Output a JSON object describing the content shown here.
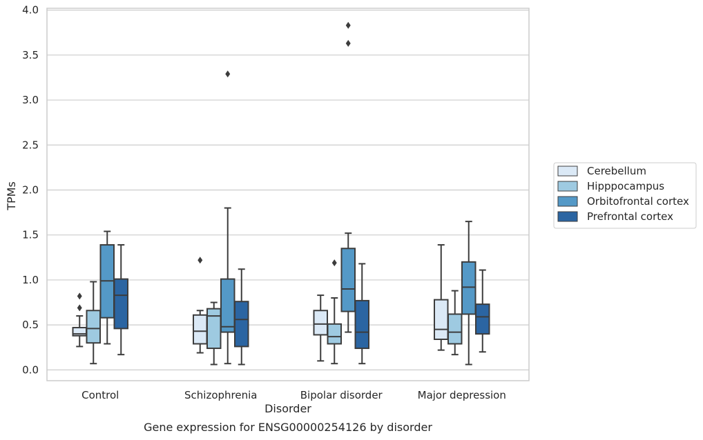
{
  "chart_data": {
    "type": "box",
    "xlabel": "Disorder",
    "ylabel": "TPMs",
    "caption": "Gene expression for ENSG00000254126 by disorder",
    "ylim": [
      -0.12,
      4.02
    ],
    "yticks": [
      "0.0",
      "0.5",
      "1.0",
      "1.5",
      "2.0",
      "2.5",
      "3.0",
      "3.5",
      "4.0"
    ],
    "ytick_values": [
      0.0,
      0.5,
      1.0,
      1.5,
      2.0,
      2.5,
      3.0,
      3.5,
      4.0
    ],
    "grid": "horizontal",
    "legend_position": "right",
    "categories": [
      "Control",
      "Schizophrenia",
      "Bipolar disorder",
      "Major depression"
    ],
    "series": [
      {
        "name": "Cerebellum",
        "color": "#dbe9f6",
        "boxes": [
          {
            "min": 0.26,
            "q1": 0.38,
            "median": 0.4,
            "q3": 0.47,
            "max": 0.6,
            "outliers": [
              0.69,
              0.82
            ]
          },
          {
            "min": 0.19,
            "q1": 0.29,
            "median": 0.43,
            "q3": 0.61,
            "max": 0.66,
            "outliers": [
              1.22
            ]
          },
          {
            "min": 0.1,
            "q1": 0.39,
            "median": 0.51,
            "q3": 0.66,
            "max": 0.83,
            "outliers": []
          },
          {
            "min": 0.22,
            "q1": 0.34,
            "median": 0.45,
            "q3": 0.78,
            "max": 1.39,
            "outliers": []
          }
        ]
      },
      {
        "name": "Hipppocampus",
        "color": "#9ecae1",
        "boxes": [
          {
            "min": 0.07,
            "q1": 0.3,
            "median": 0.46,
            "q3": 0.66,
            "max": 0.98,
            "outliers": []
          },
          {
            "min": 0.06,
            "q1": 0.24,
            "median": 0.6,
            "q3": 0.68,
            "max": 0.75,
            "outliers": []
          },
          {
            "min": 0.07,
            "q1": 0.29,
            "median": 0.37,
            "q3": 0.51,
            "max": 0.8,
            "outliers": [
              1.19
            ]
          },
          {
            "min": 0.17,
            "q1": 0.29,
            "median": 0.42,
            "q3": 0.62,
            "max": 0.88,
            "outliers": []
          }
        ]
      },
      {
        "name": "Orbitofrontal cortex",
        "color": "#5499c7",
        "boxes": [
          {
            "min": 0.29,
            "q1": 0.58,
            "median": 0.99,
            "q3": 1.39,
            "max": 1.54,
            "outliers": []
          },
          {
            "min": 0.07,
            "q1": 0.42,
            "median": 0.48,
            "q3": 1.01,
            "max": 1.8,
            "outliers": [
              3.29
            ]
          },
          {
            "min": 0.42,
            "q1": 0.65,
            "median": 0.9,
            "q3": 1.35,
            "max": 1.52,
            "outliers": [
              3.63,
              3.83
            ]
          },
          {
            "min": 0.06,
            "q1": 0.62,
            "median": 0.92,
            "q3": 1.2,
            "max": 1.65,
            "outliers": []
          }
        ]
      },
      {
        "name": "Prefrontal cortex",
        "color": "#2b65a2",
        "boxes": [
          {
            "min": 0.17,
            "q1": 0.46,
            "median": 0.83,
            "q3": 1.01,
            "max": 1.39,
            "outliers": []
          },
          {
            "min": 0.06,
            "q1": 0.26,
            "median": 0.56,
            "q3": 0.76,
            "max": 1.12,
            "outliers": []
          },
          {
            "min": 0.07,
            "q1": 0.24,
            "median": 0.42,
            "q3": 0.77,
            "max": 1.18,
            "outliers": []
          },
          {
            "min": 0.2,
            "q1": 0.4,
            "median": 0.59,
            "q3": 0.73,
            "max": 1.11,
            "outliers": []
          }
        ]
      }
    ]
  },
  "colors": {
    "grid": "#cccccc",
    "frame": "#cccccc",
    "box_edge": "#3c3c3c",
    "text": "#262626"
  }
}
